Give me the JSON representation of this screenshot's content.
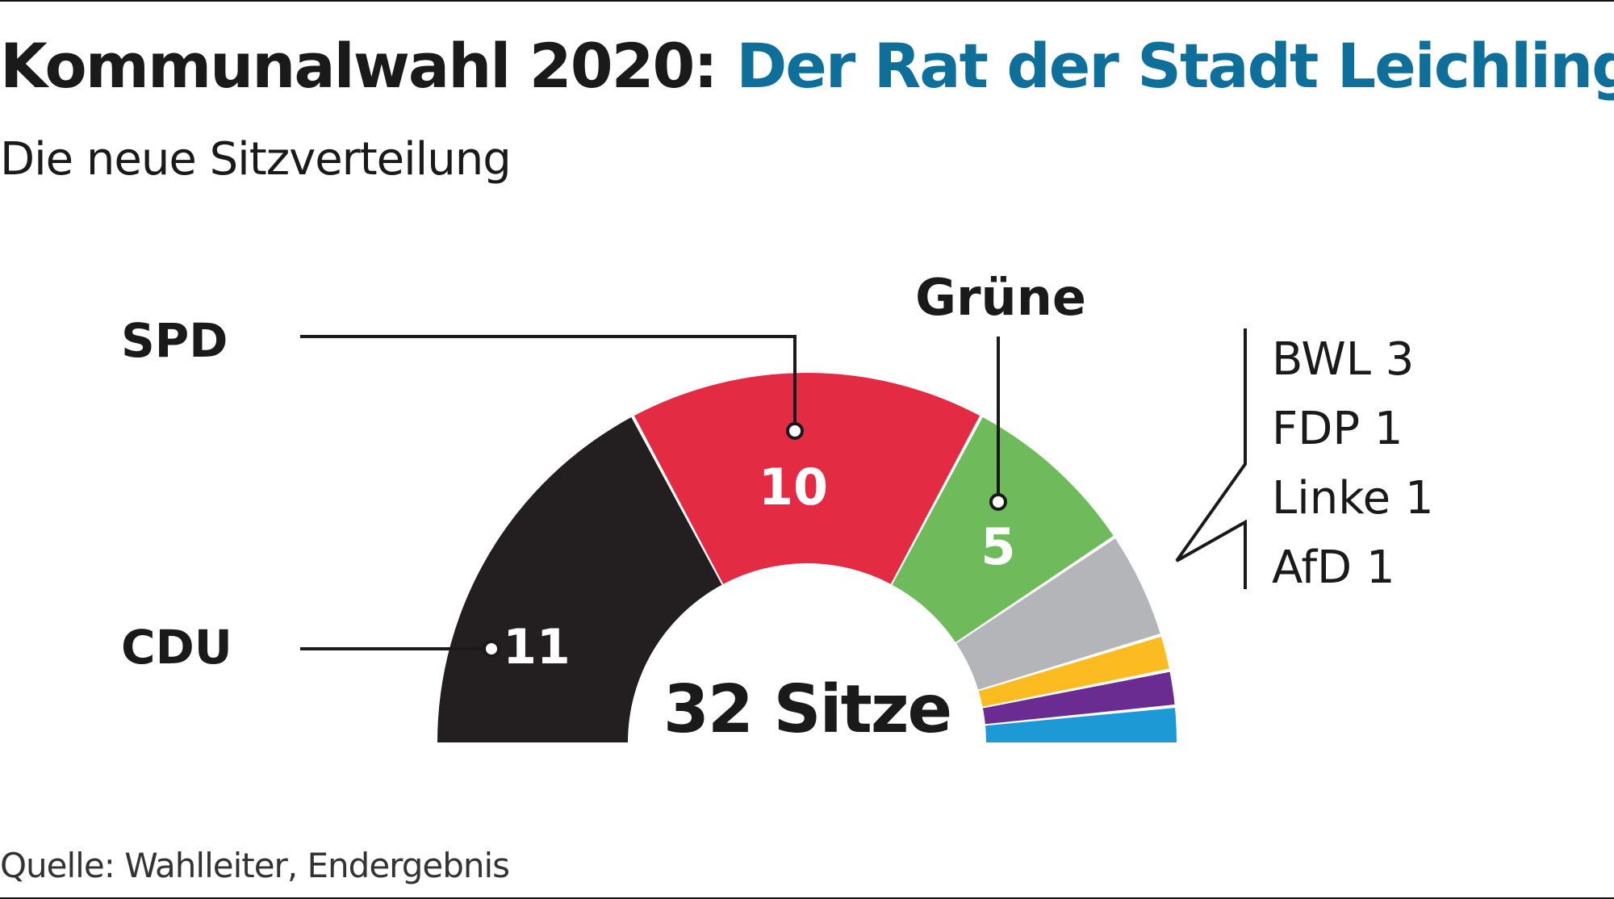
{
  "header": {
    "title_main": "Kommunalwahl 2020:",
    "title_accent": "Der Rat der Stadt Leichlingen",
    "subtitle": "Die neue Sitzverteilung"
  },
  "footer": {
    "source": "Quelle: Wahlleiter, Endergebnis"
  },
  "chart_data": {
    "type": "pie",
    "variant": "half-donut (parliament seats)",
    "total": 32,
    "center_label": "32 Sitze",
    "series": [
      {
        "name": "CDU",
        "value": 11,
        "color": "#231f20",
        "value_color": "#ffffff"
      },
      {
        "name": "SPD",
        "value": 10,
        "color": "#e32b44",
        "value_color": "#ffffff"
      },
      {
        "name": "Grüne",
        "value": 5,
        "color": "#6fbb5b",
        "value_color": "#ffffff"
      },
      {
        "name": "BWL",
        "value": 3,
        "color": "#b3b5b8"
      },
      {
        "name": "FDP",
        "value": 1,
        "color": "#fbbb21"
      },
      {
        "name": "Linke",
        "value": 1,
        "color": "#6b2c91"
      },
      {
        "name": "AfD",
        "value": 1,
        "color": "#1d9ad6"
      }
    ],
    "others_labels": [
      "BWL 3",
      "FDP 1",
      "Linke 1",
      "AfD 1"
    ]
  }
}
